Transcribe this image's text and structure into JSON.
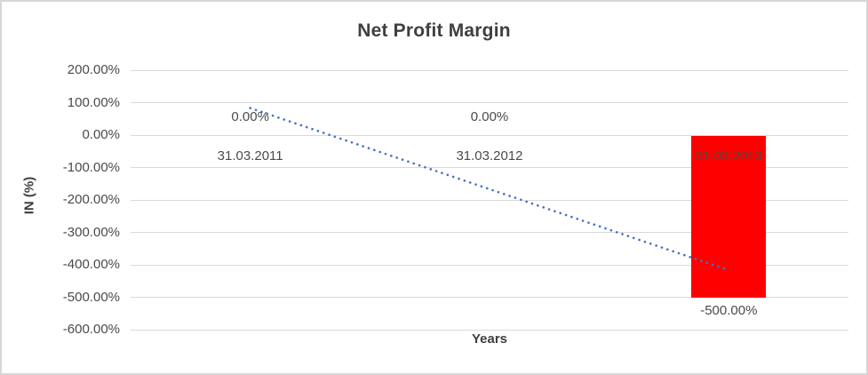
{
  "chart_data": {
    "type": "bar",
    "title": "Net Profit Margin",
    "xlabel": "Years",
    "ylabel": "IN (%)",
    "categories": [
      "31.03.2011",
      "31.03.2012",
      "31.03.2013"
    ],
    "values": [
      0,
      0,
      -500
    ],
    "data_labels": [
      "0.00%",
      "0.00%",
      "-500.00%"
    ],
    "ylim": [
      -600,
      200
    ],
    "ytick_values": [
      200,
      100,
      0,
      -100,
      -200,
      -300,
      -400,
      -500,
      -600
    ],
    "ytick_labels": [
      "200.00%",
      "100.00%",
      "0.00%",
      "-100.00%",
      "-200.00%",
      "-300.00%",
      "-400.00%",
      "-500.00%",
      "-600.00%"
    ],
    "bar_color": "#ff0000",
    "gridline_color": "#d9d9d9",
    "legend": "none",
    "gridlines": true,
    "trendline": {
      "style": "dotted",
      "color": "#4472c4",
      "start_category": "31.03.2011",
      "end_category": "31.03.2013",
      "start_value": 83.33,
      "end_value": -416.67
    }
  }
}
